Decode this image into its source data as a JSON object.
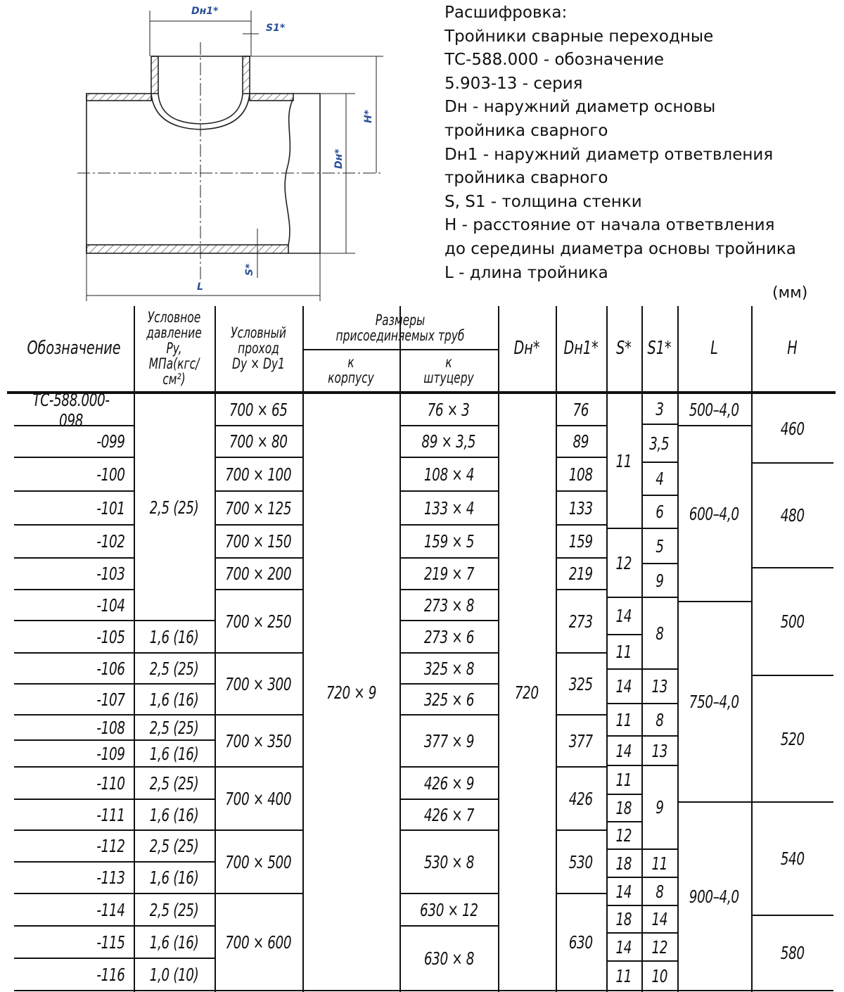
{
  "legend": {
    "lines": [
      "Расшифровка:",
      "Тройники сварные переходные",
      "ТС-588.000 - обозначение",
      "5.903-13 - серия",
      "Dн - наружний диаметр основы",
      "тройника сварного",
      "Dн1 - наружний диаметр ответвления",
      "тройника сварного",
      "S, S1 - толщина стенки",
      "H - расстояние от начала ответвления",
      "до середины диаметра основы тройника",
      "L - длина тройника"
    ]
  },
  "drawing": {
    "labels": {
      "dn1": "Dн1*",
      "s1": "S1*",
      "h": "H*",
      "dn": "Dн*",
      "s": "S*",
      "l": "L"
    },
    "label_color": "#2a4f9a"
  },
  "unit": "(мм)",
  "table": {
    "headers": {
      "designation": "Обозначение",
      "pressure": [
        "Условное",
        "давление",
        "Py,",
        "МПа(кгс/см²)"
      ],
      "passage": [
        "Условный",
        "проход",
        "Dy × Dy1"
      ],
      "pipes": [
        "Размеры",
        "присоединяемых труб"
      ],
      "body": [
        "к",
        "корпусу"
      ],
      "branch": [
        "к",
        "штуцеру"
      ],
      "dn": "Dн*",
      "dn1": "Dн1*",
      "s": "S*",
      "s1": "S1*",
      "l": "L",
      "h": "H"
    },
    "designation": [
      "ТС-588.000-098",
      "-099",
      "-100",
      "-101",
      "-102",
      "-103",
      "-104",
      "-105",
      "-106",
      "-107",
      "-108",
      "-109",
      "-110",
      "-111",
      "-112",
      "-113",
      "-114",
      "-115",
      "-116"
    ],
    "pressure": [
      "2,5 (25)",
      "1,6 (16)",
      "2,5 (25)",
      "1,6 (16)",
      "2,5 (25)",
      "1,6 (16)",
      "2,5 (25)",
      "1,6 (16)",
      "2,5 (25)",
      "1,6 (16)",
      "2,5 (25)",
      "1,6 (16)",
      "1,0 (10)"
    ],
    "passage": [
      "700 × 65",
      "700 × 80",
      "700 × 100",
      "700 × 125",
      "700 × 150",
      "700 × 200",
      "700 × 250",
      "700 × 300",
      "700 × 350",
      "700 × 400",
      "700 × 500",
      "700 × 600"
    ],
    "body": [
      "720 × 9"
    ],
    "branch": [
      "76 × 3",
      "89 × 3,5",
      "108 × 4",
      "133 × 4",
      "159 × 5",
      "219 × 7",
      "273 × 8",
      "273 × 6",
      "325 × 8",
      "325 × 6",
      "377 × 9",
      "426 × 9",
      "426 × 7",
      "530 × 8",
      "630 × 12",
      "630 × 8"
    ],
    "dn": [
      "720"
    ],
    "dn1": [
      "76",
      "89",
      "108",
      "133",
      "159",
      "219",
      "273",
      "325",
      "377",
      "426",
      "530",
      "630"
    ],
    "s": [
      "11",
      "12",
      "14",
      "11",
      "14",
      "11",
      "14",
      "11",
      "18",
      "12",
      "18",
      "14",
      "18",
      "14",
      "11"
    ],
    "s1": [
      "3",
      "3,5",
      "4",
      "6",
      "5",
      "9",
      "8",
      "13",
      "8",
      "13",
      "9",
      "11",
      "8",
      "14",
      "12",
      "10"
    ],
    "l": [
      "500–4,0",
      "600–4,0",
      "750–4,0",
      "900–4,0"
    ],
    "h": [
      "460",
      "480",
      "500",
      "520",
      "540",
      "580"
    ]
  }
}
